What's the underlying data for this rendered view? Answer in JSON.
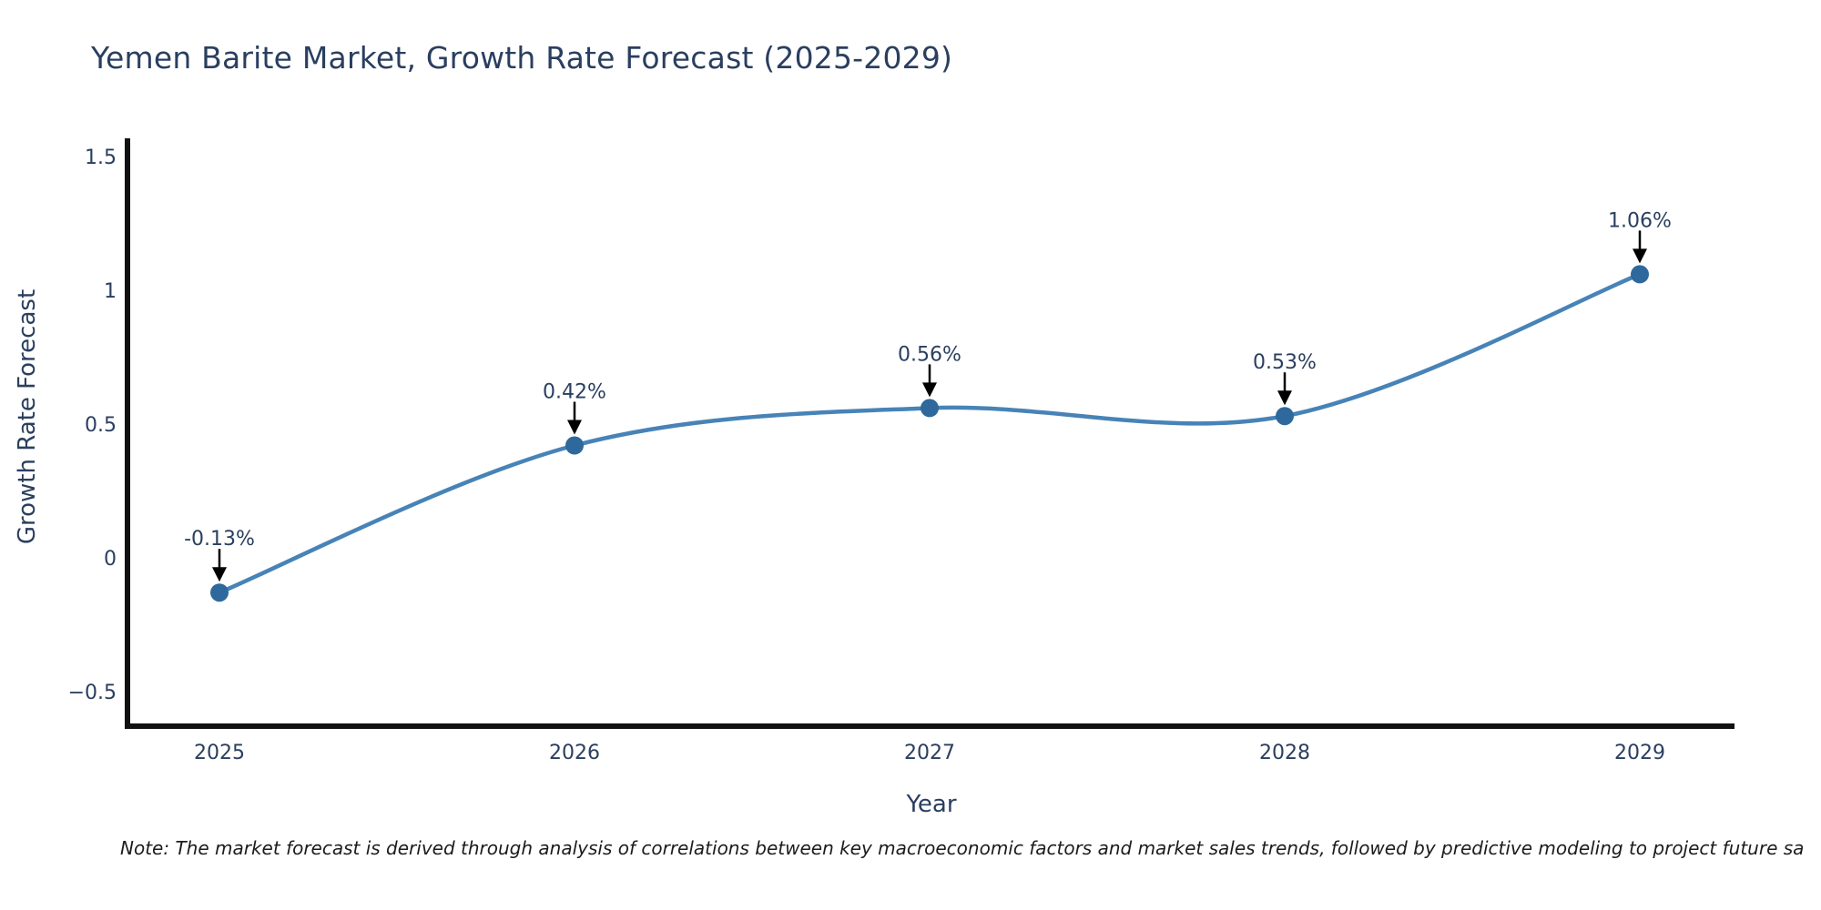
{
  "title": "Yemen Barite Market, Growth Rate Forecast (2025-2029)",
  "note": "Note: The market forecast is derived through analysis of correlations between key macroeconomic factors and market sales trends, followed by predictive modeling to project future sa",
  "colors": {
    "line": "#4783b7",
    "marker": "#2f689c",
    "arrow": "#000000",
    "axis_line": "#111111",
    "text": "#2a3f5f",
    "note_text": "#1c1c1c",
    "background": "#ffffff"
  },
  "chart_data": {
    "type": "line",
    "title": "Yemen Barite Market, Growth Rate Forecast (2025-2029)",
    "xlabel": "Year",
    "ylabel": "Growth Rate Forecast",
    "x": [
      2025,
      2026,
      2027,
      2028,
      2029
    ],
    "x_tick_labels": [
      "2025",
      "2026",
      "2027",
      "2028",
      "2029"
    ],
    "series": [
      {
        "name": "Growth Rate Forecast",
        "values": [
          -0.13,
          0.42,
          0.56,
          0.53,
          1.06
        ]
      }
    ],
    "point_labels": [
      "-0.13%",
      "0.42%",
      "0.56%",
      "0.53%",
      "1.06%"
    ],
    "y_ticks": [
      -0.5,
      0,
      0.5,
      1,
      1.5
    ],
    "y_tick_labels": [
      "−0.5",
      "0",
      "0.5",
      "1",
      "1.5"
    ],
    "ylim": [
      -0.63,
      1.57
    ],
    "grid": "off",
    "legend": "none",
    "line_shape": "spline",
    "marker_style": "circle",
    "annotation_arrows": "down-to-point"
  }
}
